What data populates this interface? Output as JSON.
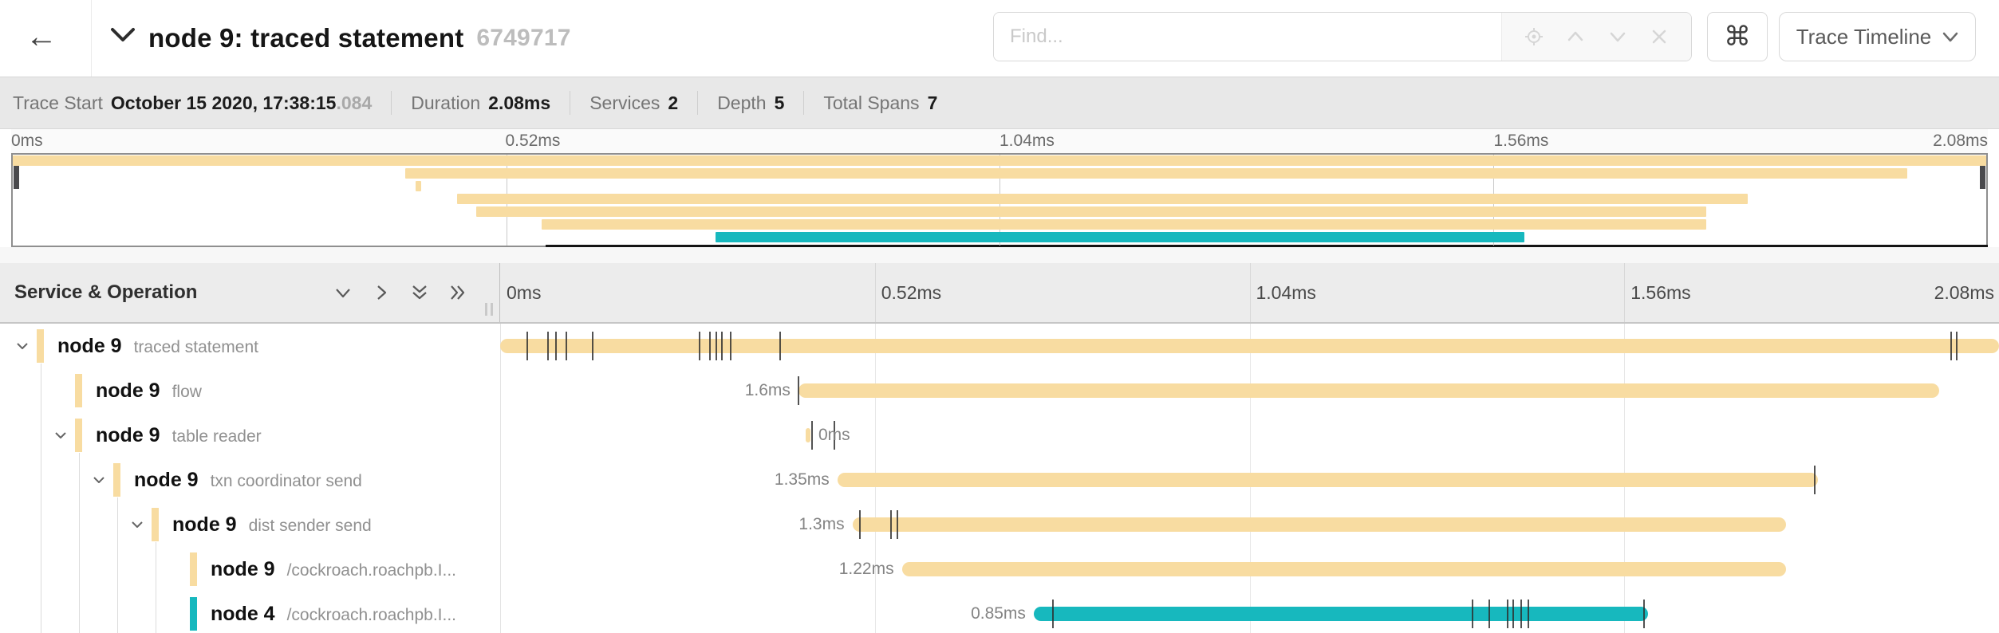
{
  "header": {
    "title": "node 9: traced statement",
    "trace_id_short": "6749717",
    "find_placeholder": "Find...",
    "keyboard_shortcut_symbol": "⌘",
    "view_selector_label": "Trace Timeline"
  },
  "summary": {
    "items": [
      {
        "label": "Trace Start",
        "value": "October 15 2020, 17:38:15",
        "suffix": ".084"
      },
      {
        "label": "Duration",
        "value": "2.08ms",
        "suffix": ""
      },
      {
        "label": "Services",
        "value": "2",
        "suffix": ""
      },
      {
        "label": "Depth",
        "value": "5",
        "suffix": ""
      },
      {
        "label": "Total Spans",
        "value": "7",
        "suffix": ""
      }
    ]
  },
  "colors": {
    "span_default": "#F8DCA1",
    "span_alt": "#17B8BE",
    "tick": "rgba(45,45,45,0.82)"
  },
  "minimap": {
    "axis_ticks": [
      "0ms",
      "0.52ms",
      "1.04ms",
      "1.56ms",
      "2.08ms"
    ]
  },
  "timeline_header": {
    "column_title": "Service & Operation",
    "ticks": [
      "0ms",
      "0.52ms",
      "1.04ms",
      "1.56ms",
      "2.08ms"
    ]
  },
  "spans": [
    {
      "service": "node 9",
      "operation": "traced statement",
      "depth": 0,
      "has_children": true,
      "color": "#F8DCA1",
      "bar": {
        "start_pct": 0,
        "end_pct": 100
      },
      "duration_label": "",
      "label_side": "none",
      "ticks": [
        1.8,
        3.2,
        3.7,
        4.4,
        6.2,
        13.3,
        14.0,
        14.4,
        14.8,
        15.4,
        18.7,
        96.8,
        97.2
      ]
    },
    {
      "service": "node 9",
      "operation": "flow",
      "depth": 1,
      "has_children": false,
      "color": "#F8DCA1",
      "bar": {
        "start_pct": 19.9,
        "end_pct": 96.0
      },
      "duration_label": "1.6ms",
      "label_side": "left",
      "ticks": [
        19.9
      ]
    },
    {
      "service": "node 9",
      "operation": "table reader",
      "depth": 1,
      "has_children": true,
      "color": "#F8DCA1",
      "bar": {
        "start_pct": 20.4,
        "end_pct": 20.7
      },
      "duration_label": "0ms",
      "label_side": "right",
      "ticks": [
        20.8,
        22.3
      ]
    },
    {
      "service": "node 9",
      "operation": "txn coordinator send",
      "depth": 2,
      "has_children": true,
      "color": "#F8DCA1",
      "bar": {
        "start_pct": 22.5,
        "end_pct": 87.9
      },
      "duration_label": "1.35ms",
      "label_side": "left",
      "ticks": [
        87.7
      ]
    },
    {
      "service": "node 9",
      "operation": "dist sender send",
      "depth": 3,
      "has_children": true,
      "color": "#F8DCA1",
      "bar": {
        "start_pct": 23.5,
        "end_pct": 85.8
      },
      "duration_label": "1.3ms",
      "label_side": "left",
      "ticks": [
        24.0,
        26.1,
        26.5
      ]
    },
    {
      "service": "node 9",
      "operation": "/cockroach.roachpb.I...",
      "depth": 4,
      "has_children": false,
      "color": "#F8DCA1",
      "bar": {
        "start_pct": 26.8,
        "end_pct": 85.8
      },
      "duration_label": "1.22ms",
      "label_side": "left",
      "ticks": []
    },
    {
      "service": "node 4",
      "operation": "/cockroach.roachpb.I...",
      "depth": 4,
      "has_children": false,
      "color": "#17B8BE",
      "bar": {
        "start_pct": 35.6,
        "end_pct": 76.6
      },
      "duration_label": "0.85ms",
      "label_side": "left",
      "ticks": [
        36.9,
        64.9,
        66.0,
        67.2,
        67.6,
        68.1,
        68.6,
        76.3
      ]
    }
  ]
}
